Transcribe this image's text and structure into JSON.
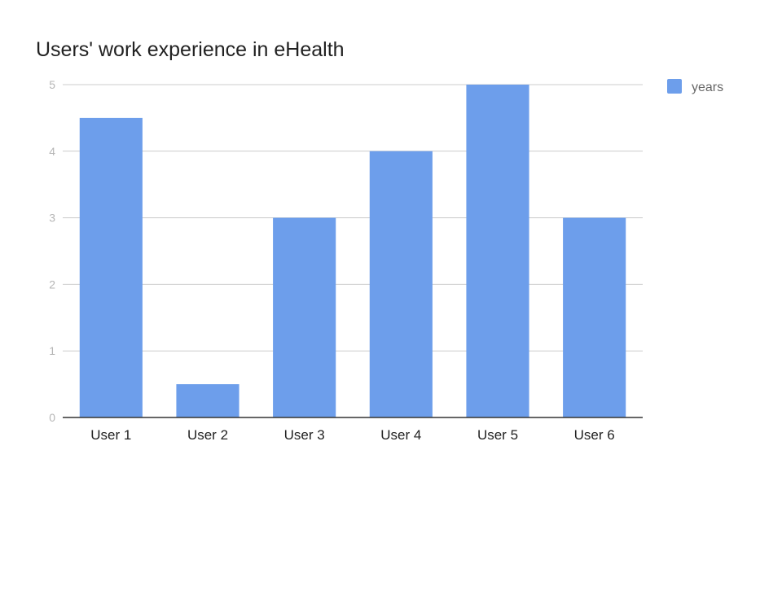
{
  "chart_data": {
    "type": "bar",
    "title": "Users' work experience in eHealth",
    "xlabel": "",
    "ylabel": "",
    "categories": [
      "User 1",
      "User 2",
      "User 3",
      "User 4",
      "User 5",
      "User 6"
    ],
    "series": [
      {
        "name": "years",
        "values": [
          4.5,
          0.5,
          3,
          4,
          5,
          3
        ],
        "color": "#6d9eeb"
      }
    ],
    "ylim": [
      0,
      5
    ],
    "yticks": [
      "0",
      "1",
      "2",
      "3",
      "4",
      "5"
    ],
    "grid": true,
    "legend_position": "top-right"
  }
}
